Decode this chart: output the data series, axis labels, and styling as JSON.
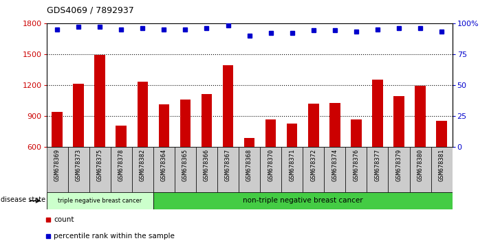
{
  "title": "GDS4069 / 7892937",
  "samples": [
    "GSM678369",
    "GSM678373",
    "GSM678375",
    "GSM678378",
    "GSM678382",
    "GSM678364",
    "GSM678365",
    "GSM678366",
    "GSM678367",
    "GSM678368",
    "GSM678370",
    "GSM678371",
    "GSM678372",
    "GSM678374",
    "GSM678376",
    "GSM678377",
    "GSM678379",
    "GSM678380",
    "GSM678381"
  ],
  "counts": [
    940,
    1215,
    1495,
    810,
    1230,
    1010,
    1060,
    1110,
    1390,
    690,
    870,
    830,
    1020,
    1025,
    870,
    1255,
    1090,
    1195,
    855
  ],
  "percentiles": [
    95,
    97,
    97,
    95,
    96,
    95,
    95,
    96,
    98,
    90,
    92,
    92,
    94,
    94,
    93,
    95,
    96,
    96,
    93
  ],
  "ylim_left": [
    600,
    1800
  ],
  "ylim_right": [
    0,
    100
  ],
  "yticks_left": [
    600,
    900,
    1200,
    1500,
    1800
  ],
  "yticks_right": [
    0,
    25,
    50,
    75,
    100
  ],
  "bar_color": "#cc0000",
  "dot_color": "#0000cc",
  "group1_count": 5,
  "group1_label": "triple negative breast cancer",
  "group2_label": "non-triple negative breast cancer",
  "group1_facecolor": "#ccffcc",
  "group2_facecolor": "#44cc44",
  "disease_state_label": "disease state",
  "legend_count_label": "count",
  "legend_percentile_label": "percentile rank within the sample",
  "tick_bg_color": "#cccccc",
  "bar_width": 0.5
}
